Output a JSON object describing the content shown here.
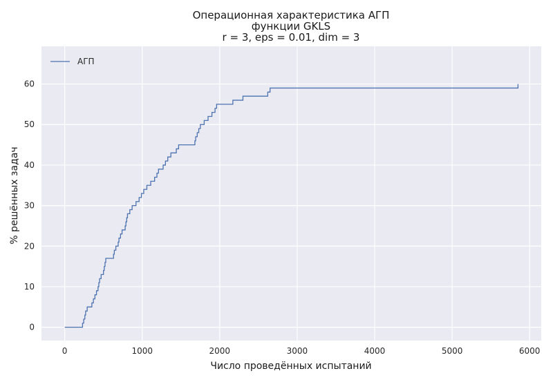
{
  "chart_data": {
    "type": "line",
    "title": [
      "Операционная характеристика АГП",
      "функции GKLS",
      "r = 3, eps = 0.01, dim = 3"
    ],
    "xlabel": "Число проведённых испытаний",
    "ylabel": "% решённых задач",
    "xlim": [
      -300,
      6150
    ],
    "ylim": [
      -3.3,
      69.3
    ],
    "xticks": [
      0,
      1000,
      2000,
      3000,
      4000,
      5000,
      6000
    ],
    "yticks": [
      0,
      10,
      20,
      30,
      40,
      50,
      60
    ],
    "grid": true,
    "legend_position": "top-left",
    "colors": {
      "background": "#eaeaf2",
      "grid": "#ffffff",
      "line": "#4c72b0"
    },
    "series": [
      {
        "name": "АГП",
        "step": true,
        "x": [
          0,
          230,
          245,
          260,
          270,
          290,
          350,
          370,
          390,
          410,
          430,
          440,
          450,
          470,
          500,
          510,
          520,
          530,
          630,
          640,
          660,
          690,
          700,
          720,
          740,
          780,
          790,
          800,
          810,
          840,
          870,
          920,
          960,
          990,
          1020,
          1060,
          1110,
          1160,
          1190,
          1210,
          1270,
          1300,
          1330,
          1370,
          1440,
          1470,
          1680,
          1690,
          1710,
          1730,
          1750,
          1800,
          1850,
          1900,
          1940,
          1960,
          2170,
          2300,
          2620,
          2650,
          5850
        ],
        "y": [
          0,
          1,
          2,
          3,
          4,
          5,
          6,
          7,
          8,
          9,
          10,
          11,
          12,
          13,
          14,
          15,
          16,
          17,
          18,
          19,
          20,
          21,
          22,
          23,
          24,
          25,
          26,
          27,
          28,
          29,
          30,
          31,
          32,
          33,
          34,
          35,
          36,
          37,
          38,
          39,
          40,
          41,
          42,
          43,
          44,
          45,
          46,
          47,
          48,
          49,
          50,
          51,
          52,
          53,
          54,
          55,
          56,
          57,
          58,
          59,
          60
        ]
      }
    ]
  }
}
